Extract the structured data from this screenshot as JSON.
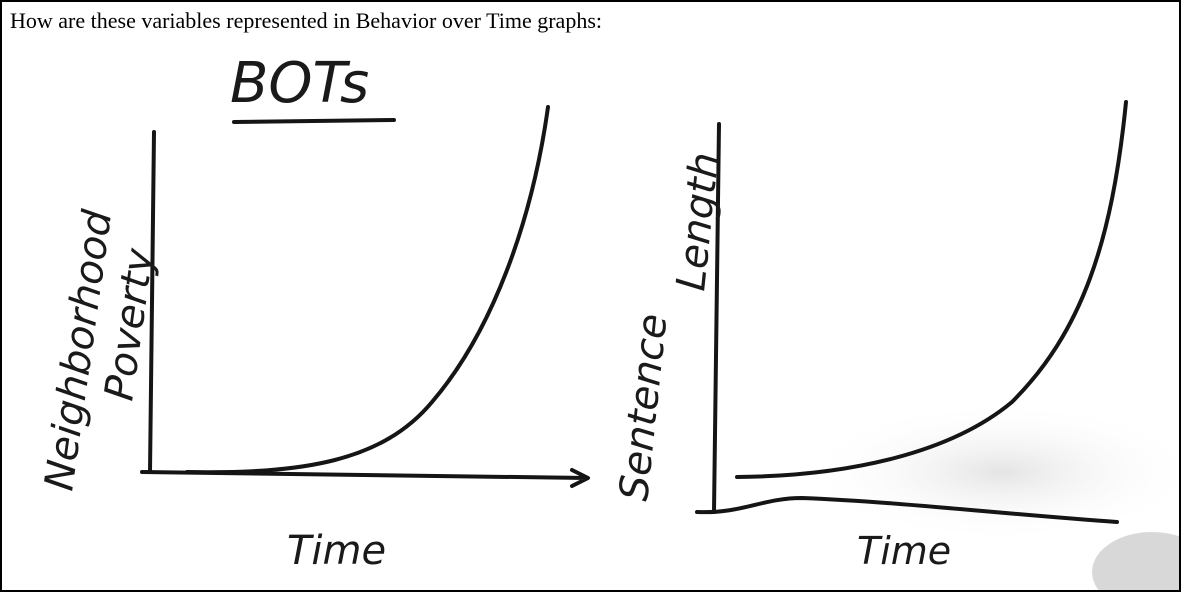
{
  "question": "How are these variables represented in Behavior over Time graphs:",
  "sketch": {
    "title": "BOTs",
    "graphs": [
      {
        "y_label": [
          "Neighborhood",
          "Poverty"
        ],
        "x_label": "Time"
      },
      {
        "y_label": [
          "Sentence",
          "Length"
        ],
        "x_label": "Time"
      }
    ]
  }
}
